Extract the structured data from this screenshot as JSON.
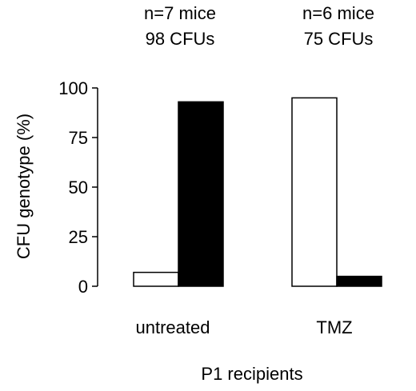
{
  "chart_data": {
    "type": "bar",
    "categories": [
      "untreated",
      "TMZ"
    ],
    "series": [
      {
        "fill": "#ffffff",
        "values": [
          7,
          95
        ]
      },
      {
        "fill": "#000000",
        "values": [
          93,
          5
        ]
      }
    ],
    "group_annotations": [
      {
        "line1": "n=7 mice",
        "line2": "98 CFUs"
      },
      {
        "line1": "n=6 mice",
        "line2": "75 CFUs"
      }
    ],
    "title": "",
    "xlabel": "P1 recipients",
    "ylabel": "CFU genotype (%)",
    "ylim": [
      0,
      100
    ],
    "yticks": [
      0,
      25,
      50,
      75,
      100
    ],
    "ytick_labels": [
      "0",
      "25",
      "50",
      "75",
      "100"
    ],
    "grid": false,
    "legend": "none"
  }
}
